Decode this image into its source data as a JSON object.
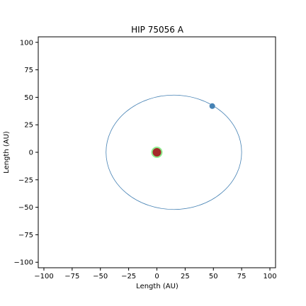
{
  "chart_data": {
    "type": "scatter",
    "title": "HIP 75056 A",
    "xlabel": "Length (AU)",
    "ylabel": "Length (AU)",
    "xlim": [
      -105,
      105
    ],
    "ylim": [
      -105,
      105
    ],
    "x_ticks": [
      -100,
      -75,
      -50,
      -25,
      0,
      25,
      50,
      75,
      100
    ],
    "y_ticks": [
      -100,
      -75,
      -50,
      -25,
      0,
      25,
      50,
      75,
      100
    ],
    "grid": false,
    "legend": "none",
    "star": {
      "x": 0,
      "y": 0,
      "color": "#a52a2a",
      "halo_color": "#90ee90"
    },
    "orbit": {
      "center_x": 15,
      "center_y": 0,
      "semi_major_axis": 60,
      "semi_minor_axis": 52,
      "color": "#4682b4"
    },
    "companion": {
      "x": 49,
      "y": 42,
      "color": "#4682b4"
    }
  }
}
